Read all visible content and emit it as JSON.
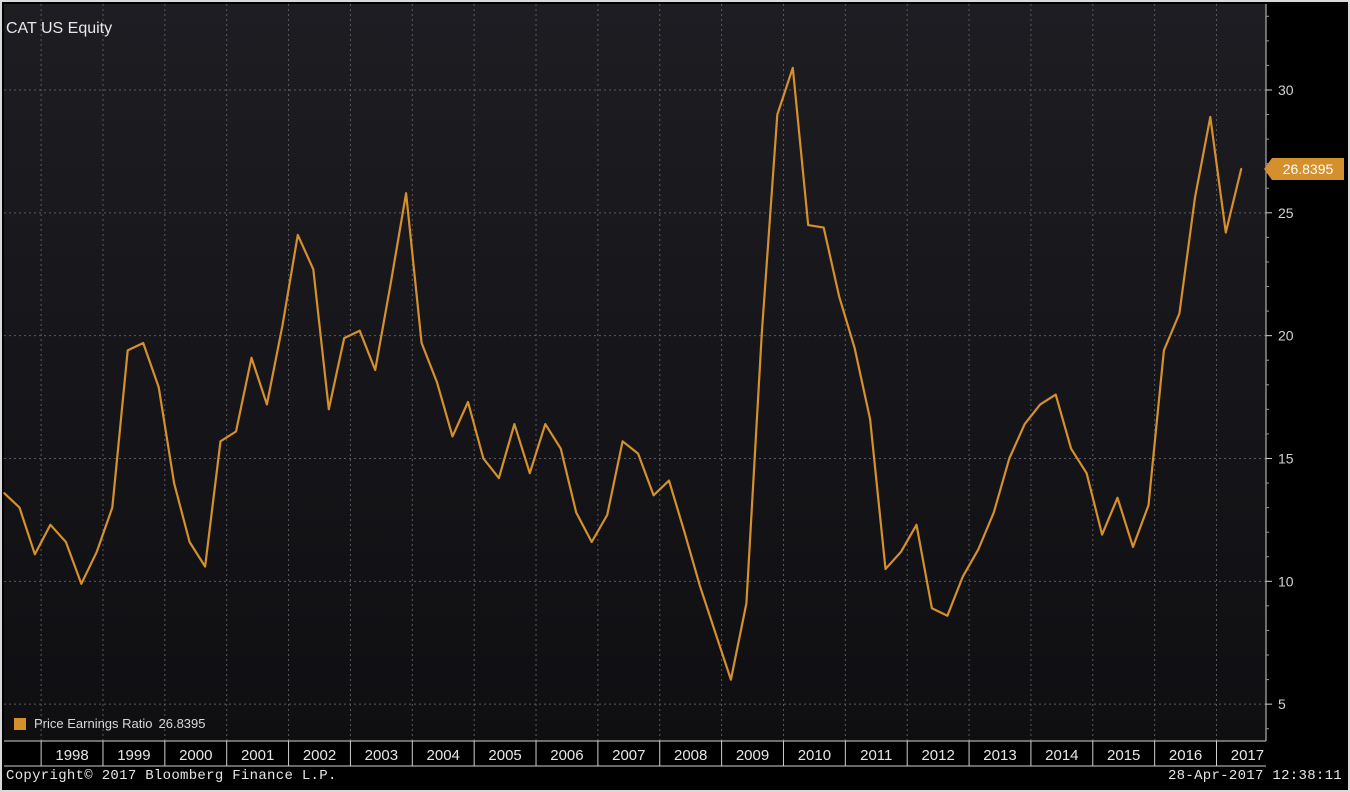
{
  "chart_data": {
    "type": "line",
    "title": "CAT US Equity",
    "ylim": [
      3.5,
      33.5
    ],
    "yticks": [
      5,
      10,
      15,
      20,
      25,
      30
    ],
    "x_tick_labels": [
      "1998",
      "1999",
      "2000",
      "2001",
      "2002",
      "2003",
      "2004",
      "2005",
      "2006",
      "2007",
      "2008",
      "2009",
      "2010",
      "2011",
      "2012",
      "2013",
      "2014",
      "2015",
      "2016",
      "2017"
    ],
    "x_range": [
      1997.4,
      2017.8
    ],
    "grid": true,
    "legend_position": "bottom-left",
    "series": [
      {
        "name": "Price Earnings Ratio",
        "color": "#d4902c",
        "last_value": "26.8395",
        "x": [
          1997.4,
          1997.65,
          1997.9,
          1998.15,
          1998.4,
          1998.65,
          1998.9,
          1999.15,
          1999.4,
          1999.65,
          1999.9,
          2000.15,
          2000.4,
          2000.65,
          2000.9,
          2001.15,
          2001.4,
          2001.65,
          2001.9,
          2002.15,
          2002.4,
          2002.65,
          2002.9,
          2003.15,
          2003.4,
          2003.65,
          2003.9,
          2004.15,
          2004.4,
          2004.65,
          2004.9,
          2005.15,
          2005.4,
          2005.65,
          2005.9,
          2006.15,
          2006.4,
          2006.65,
          2006.9,
          2007.15,
          2007.4,
          2007.65,
          2007.9,
          2008.15,
          2008.4,
          2008.65,
          2008.9,
          2009.15,
          2009.4,
          2009.65,
          2009.9,
          2010.15,
          2010.4,
          2010.65,
          2010.9,
          2011.15,
          2011.4,
          2011.65,
          2011.9,
          2012.15,
          2012.4,
          2012.65,
          2012.9,
          2013.15,
          2013.4,
          2013.65,
          2013.9,
          2014.15,
          2014.4,
          2014.65,
          2014.9,
          2015.15,
          2015.4,
          2015.65,
          2015.9,
          2016.15,
          2016.4,
          2016.65,
          2016.9,
          2017.15,
          2017.4
        ],
        "y": [
          13.6,
          13.0,
          11.1,
          12.3,
          11.6,
          9.9,
          11.2,
          13.0,
          19.4,
          19.7,
          17.9,
          14.0,
          11.6,
          10.6,
          15.7,
          16.1,
          19.1,
          17.2,
          20.4,
          24.1,
          22.7,
          17.0,
          19.9,
          20.2,
          18.6,
          22.1,
          25.8,
          19.7,
          18.1,
          15.9,
          17.3,
          15.0,
          14.2,
          16.4,
          14.4,
          16.4,
          15.4,
          12.8,
          11.6,
          12.7,
          15.7,
          15.2,
          13.5,
          14.1,
          12.0,
          9.8,
          7.9,
          6.0,
          9.1,
          20.1,
          29.0,
          30.9,
          24.5,
          24.4,
          21.6,
          19.5,
          16.6,
          10.5,
          11.2,
          12.3,
          8.9,
          8.6,
          10.2,
          11.3,
          12.8,
          15.0,
          16.4,
          17.2,
          17.6,
          15.4,
          14.4,
          11.9,
          13.4,
          11.4,
          13.1,
          19.4,
          20.9,
          25.6,
          28.9,
          24.2,
          26.8
        ]
      }
    ]
  },
  "footer": {
    "copyright": "Copyright© 2017 Bloomberg Finance L.P.",
    "timestamp": "28-Apr-2017 12:38:11"
  }
}
